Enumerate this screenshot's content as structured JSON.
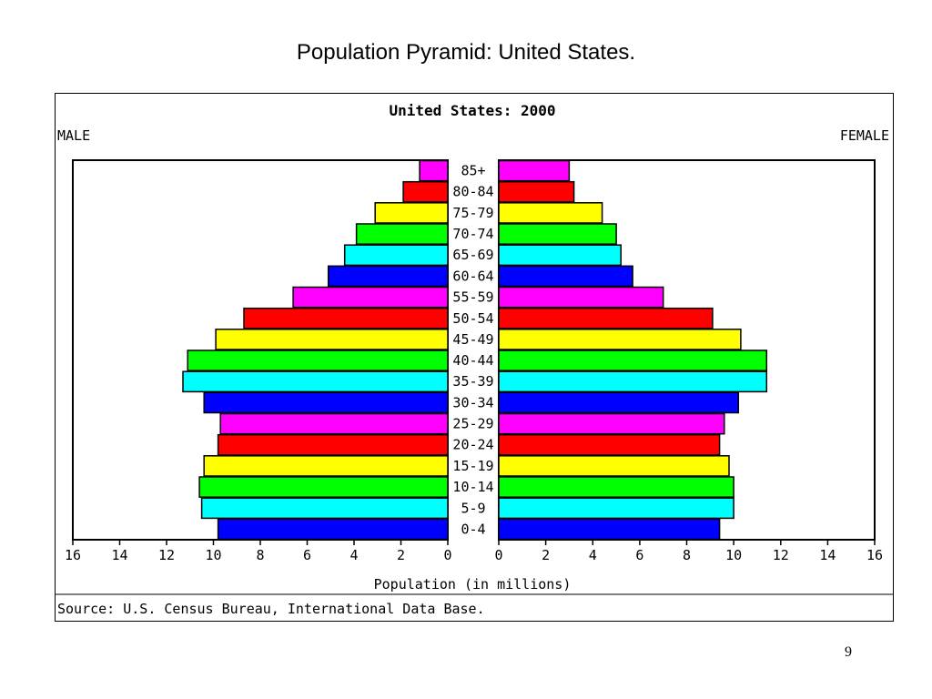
{
  "slide": {
    "title": "Population Pyramid: United States.",
    "page_number": "9"
  },
  "chart_data": {
    "type": "bar",
    "title": "United States: 2000",
    "left_label": "MALE",
    "right_label": "FEMALE",
    "xlabel": "Population (in millions)",
    "source": "Source: U.S. Census Bureau, International Data Base.",
    "xlim": [
      0,
      16
    ],
    "tick_labels": [
      "0",
      "2",
      "4",
      "6",
      "8",
      "10",
      "12",
      "14",
      "16"
    ],
    "categories": [
      "0-4",
      "5-9",
      "10-14",
      "15-19",
      "20-24",
      "25-29",
      "30-34",
      "35-39",
      "40-44",
      "45-49",
      "50-54",
      "55-59",
      "60-64",
      "65-69",
      "70-74",
      "75-79",
      "80-84",
      "85+"
    ],
    "series": [
      {
        "name": "MALE",
        "values": [
          9.8,
          10.5,
          10.6,
          10.4,
          9.8,
          9.7,
          10.4,
          11.3,
          11.1,
          9.9,
          8.7,
          6.6,
          5.1,
          4.4,
          3.9,
          3.1,
          1.9,
          1.2
        ]
      },
      {
        "name": "FEMALE",
        "values": [
          9.4,
          10.0,
          10.0,
          9.8,
          9.4,
          9.6,
          10.2,
          11.4,
          11.4,
          10.3,
          9.1,
          7.0,
          5.7,
          5.2,
          5.0,
          4.4,
          3.2,
          3.0
        ]
      }
    ],
    "bar_colors": [
      "#0000ff",
      "#00ffff",
      "#00ff00",
      "#ffff00",
      "#ff0000",
      "#ff00ff"
    ],
    "grid": false
  }
}
